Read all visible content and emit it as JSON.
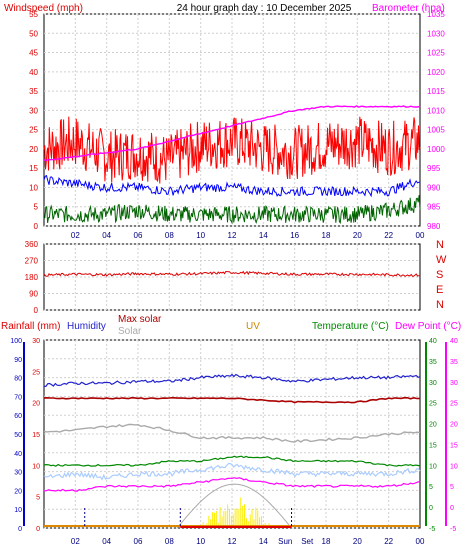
{
  "header": {
    "left_title": "Windspeed (mph)",
    "center_title": "24 hour graph day : 10 December 2025",
    "right_title": "Barometer (hpa)"
  },
  "x_hour_labels": [
    "02",
    "04",
    "06",
    "08",
    "10",
    "12",
    "14",
    "16",
    "18",
    "20",
    "22",
    "00"
  ],
  "x_hour_labels_bottom": [
    "02",
    "04",
    "06",
    "08",
    "10",
    "12",
    "14",
    "Sun",
    "Set",
    "18",
    "20",
    "22",
    "00"
  ],
  "colors": {
    "wind_avg": "#0000ff",
    "wind_gust": "#ff0000",
    "wind_low": "#006400",
    "barometer": "#ff00ff",
    "direction": "#dd0000",
    "rain": "#0000cc",
    "humidity": "#2222cc",
    "max_solar": "#aa0000",
    "solar": "#aaaaaa",
    "uv": "#cc8800",
    "temperature": "#008800",
    "dew_point": "#ff00ff"
  },
  "chart_data": [
    {
      "type": "line",
      "title": "24 hour graph day : 10 December 2025",
      "ylabel_left": "Windspeed (mph)",
      "ylabel_right": "Barometer (hpa)",
      "ylim_left": [
        0,
        55
      ],
      "yticks_left": [
        0,
        5,
        10,
        15,
        20,
        25,
        30,
        35,
        40,
        45,
        50,
        55
      ],
      "ylim_right": [
        980,
        1035
      ],
      "yticks_right": [
        980,
        985,
        990,
        995,
        1000,
        1005,
        1010,
        1015,
        1020,
        1025,
        1030,
        1035
      ],
      "x_hours": [
        0,
        2,
        4,
        6,
        8,
        10,
        12,
        14,
        16,
        18,
        20,
        22,
        24
      ],
      "series": [
        {
          "key": "gust",
          "axis": "left",
          "values": [
            20,
            22,
            18,
            19,
            17,
            21,
            22,
            20,
            19,
            21,
            22,
            20,
            22
          ]
        },
        {
          "key": "avg",
          "axis": "left",
          "values": [
            12,
            11,
            10,
            10,
            9,
            10,
            10,
            9,
            9,
            9,
            9,
            9,
            12
          ]
        },
        {
          "key": "low",
          "axis": "left",
          "values": [
            3,
            3,
            3,
            4,
            3,
            3,
            3,
            3,
            3,
            3,
            3,
            4,
            6
          ]
        },
        {
          "key": "pressure",
          "axis": "right",
          "values": [
            997,
            998,
            999,
            1000,
            1002,
            1004,
            1006,
            1008,
            1010,
            1011,
            1011,
            1011,
            1011
          ]
        }
      ],
      "grid": true
    },
    {
      "type": "line",
      "ylim": [
        0,
        360
      ],
      "yticks": [
        0,
        90,
        180,
        270,
        360
      ],
      "compass_labels": [
        "N",
        "W",
        "S",
        "E",
        "N"
      ],
      "series": [
        {
          "key": "direction",
          "values": [
            190,
            195,
            192,
            198,
            195,
            198,
            205,
            200,
            195,
            195,
            195,
            192,
            190
          ]
        }
      ],
      "grid": true
    },
    {
      "type": "line",
      "legend": {
        "rainfall": "Rainfall (mm)",
        "humidity": "Humidity",
        "max_solar": "Max solar",
        "solar": "Solar",
        "uv": "UV",
        "temperature": "Temperature (°C)",
        "dew_point": "Dew Point (°C)"
      },
      "axis_rainfall": {
        "ylim": [
          0,
          30
        ],
        "yticks": [
          0,
          5,
          10,
          15,
          20,
          25,
          30
        ]
      },
      "axis_humidity": {
        "ylim": [
          0,
          100
        ],
        "yticks": [
          0,
          10,
          20,
          30,
          40,
          50,
          60,
          70,
          80,
          90,
          100
        ]
      },
      "axis_temperature": {
        "ylim": [
          -5,
          40
        ],
        "yticks": [
          -5,
          0,
          5,
          10,
          15,
          20,
          25,
          30,
          35,
          40
        ]
      },
      "axis_dew_point": {
        "ylim": [
          -5,
          40
        ],
        "yticks": [
          -5,
          0,
          5,
          10,
          15,
          20,
          25,
          30,
          35,
          40
        ]
      },
      "series": [
        {
          "key": "humidity",
          "values": [
            76,
            77,
            77,
            78,
            78,
            80,
            81,
            80,
            78,
            79,
            80,
            80,
            81
          ]
        },
        {
          "key": "max_solar",
          "values": [
            69,
            69,
            69,
            69,
            69,
            69,
            69,
            68,
            67,
            67,
            67,
            69,
            69
          ]
        },
        {
          "key": "solar_grey",
          "values": [
            51,
            52,
            54,
            55,
            52,
            48,
            48,
            48,
            46,
            47,
            48,
            50,
            51
          ]
        },
        {
          "key": "temperature",
          "values": [
            10,
            10,
            10,
            10,
            11,
            11,
            12,
            12,
            11,
            11,
            11,
            10,
            10
          ]
        },
        {
          "key": "temperature_light",
          "values": [
            7,
            8,
            7,
            8,
            8,
            9,
            10,
            9,
            8,
            8,
            8,
            8,
            9
          ]
        },
        {
          "key": "dew_point",
          "values": [
            4,
            4,
            5,
            5,
            5,
            6,
            7,
            6,
            5,
            5,
            5,
            5,
            6
          ]
        }
      ],
      "solar_curve_peak_hour": 12.3,
      "solar_curve_span_hours": [
        8.5,
        15.8
      ],
      "solar_peak_value": 2.5,
      "grid": true
    }
  ]
}
